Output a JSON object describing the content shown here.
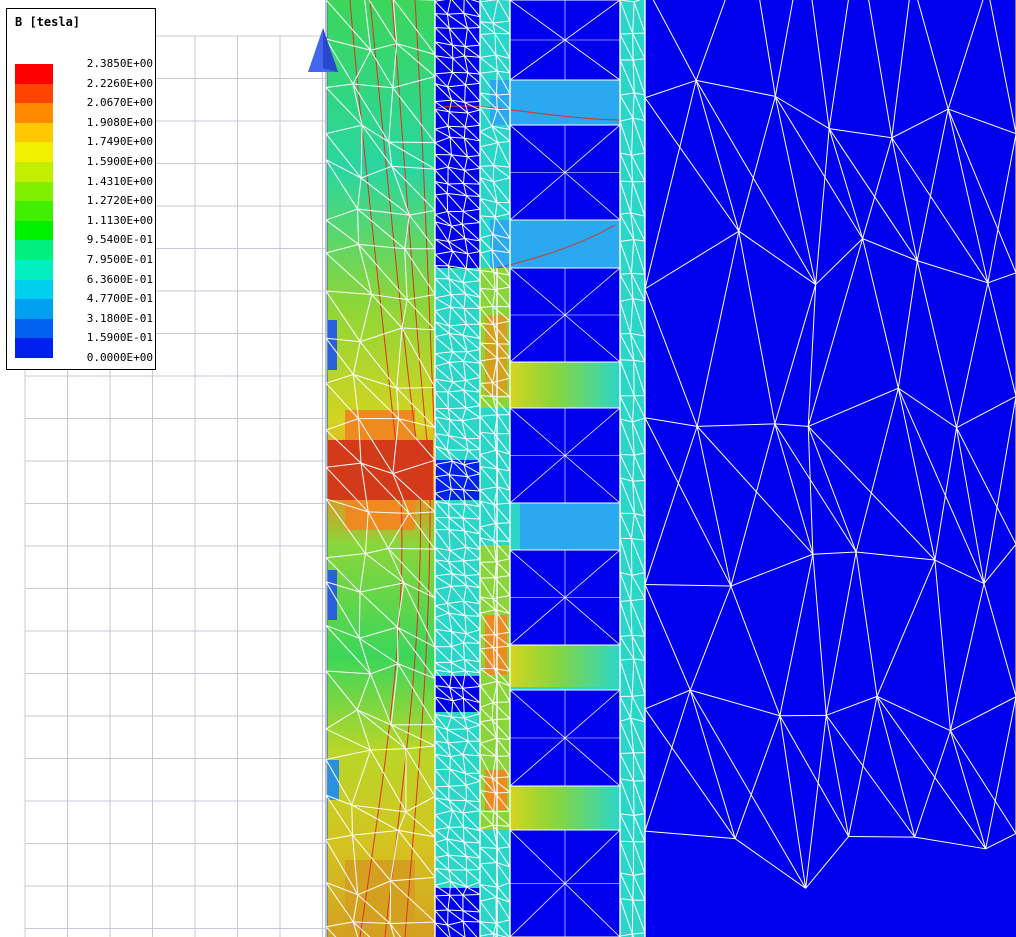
{
  "legend": {
    "title": "B [tesla]",
    "values": [
      "2.3850E+00",
      "2.2260E+00",
      "2.0670E+00",
      "1.9080E+00",
      "1.7490E+00",
      "1.5900E+00",
      "1.4310E+00",
      "1.2720E+00",
      "1.1130E+00",
      "9.5400E-01",
      "7.9500E-01",
      "6.3600E-01",
      "4.7700E-01",
      "3.1800E-01",
      "1.5900E-01",
      "0.0000E+00"
    ],
    "colors": [
      "#ff0000",
      "#ff4400",
      "#ff8a00",
      "#ffc800",
      "#f0f000",
      "#c0f000",
      "#80f000",
      "#40f000",
      "#00f000",
      "#00f080",
      "#00f0c0",
      "#00d0f0",
      "#00a0f0",
      "#0060f0",
      "#0020f0"
    ]
  },
  "field_colors": {
    "red": "#d23a1a",
    "orange": "#ee8a20",
    "yellow": "#d4d420",
    "lightgreen": "#8ad63a",
    "green": "#3cd65a",
    "cyan": "#2ad6c8",
    "lightblue": "#2aa8f0",
    "blue": "#0000ee",
    "mesh": "#ffffff",
    "grid": "#c8c8d8",
    "axis_arrow": "#4466ee"
  }
}
